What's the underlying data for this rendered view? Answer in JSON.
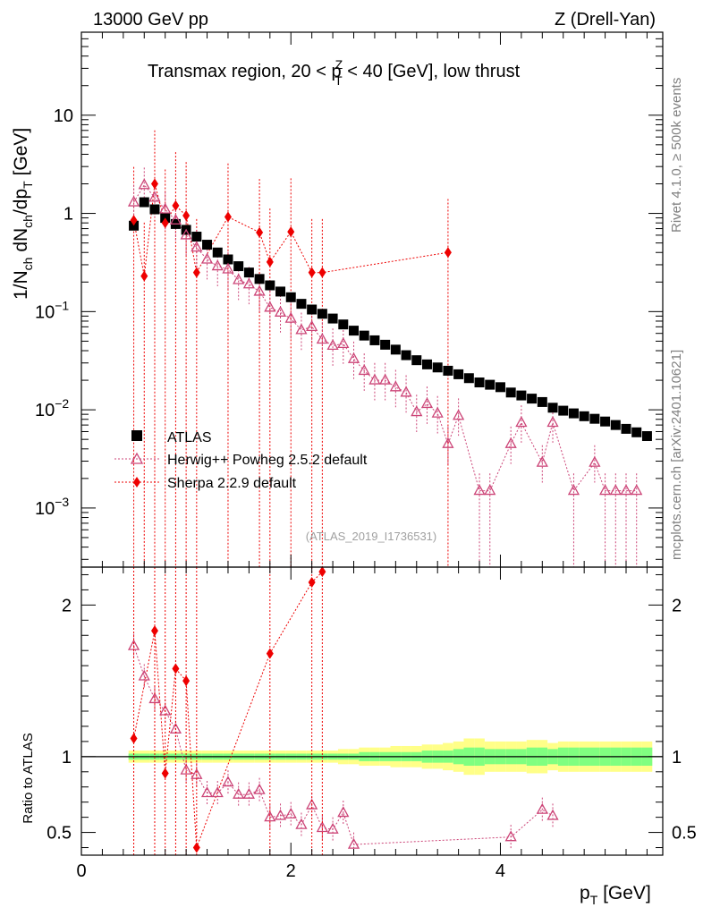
{
  "header": {
    "left": "13000 GeV pp",
    "right": "Z (Drell-Yan)",
    "plot_title": "Transmax region, 20 < p",
    "plot_title_sup": "Z",
    "plot_title_sub": "T",
    "plot_title_tail": " < 40 [GeV], low thrust"
  },
  "side_labels": {
    "rivet": "Rivet 4.1.0, ≥ 500k events",
    "mcplots": "mcplots.cern.ch [arXiv:2401.10621]"
  },
  "watermark": "(ATLAS_2019_I1736531)",
  "colors": {
    "atlas": "#000000",
    "herwig": "#cc4477",
    "sherpa": "#ee0000",
    "band_inner": "#80ff80",
    "band_outer": "#ffff88"
  },
  "chart_data": [
    {
      "type": "scatter",
      "title": "Transmax region, 20 < pT^Z < 40 [GeV], low thrust",
      "ylabel": "1/N_ch dN_ch/dp_T [GeV]",
      "yscale": "log",
      "ylim": [
        0.00025,
        70
      ],
      "xlim": [
        0,
        5.55
      ],
      "y_ticks": [
        {
          "value": 0.001,
          "base": "10",
          "exp": "−3"
        },
        {
          "value": 0.01,
          "base": "10",
          "exp": "−2"
        },
        {
          "value": 0.1,
          "base": "10",
          "exp": "−1"
        },
        {
          "value": 1,
          "base": "1",
          "exp": ""
        },
        {
          "value": 10,
          "base": "10",
          "exp": ""
        }
      ],
      "legend": [
        "ATLAS",
        "Herwig++ Powheg 2.5.2 default",
        "Sherpa 2.2.9 default"
      ],
      "series": [
        {
          "name": "ATLAS",
          "marker": "square",
          "x": [
            0.5,
            0.6,
            0.7,
            0.8,
            0.9,
            1.0,
            1.1,
            1.2,
            1.3,
            1.4,
            1.5,
            1.6,
            1.7,
            1.8,
            1.9,
            2.0,
            2.1,
            2.2,
            2.3,
            2.4,
            2.5,
            2.6,
            2.7,
            2.8,
            2.9,
            3.0,
            3.1,
            3.2,
            3.3,
            3.4,
            3.5,
            3.6,
            3.7,
            3.8,
            3.9,
            4.0,
            4.1,
            4.2,
            4.3,
            4.4,
            4.5,
            4.6,
            4.7,
            4.8,
            4.9,
            5.0,
            5.1,
            5.2,
            5.3,
            5.4
          ],
          "y": [
            0.75,
            1.3,
            1.1,
            0.9,
            0.78,
            0.68,
            0.58,
            0.48,
            0.4,
            0.34,
            0.29,
            0.25,
            0.215,
            0.185,
            0.16,
            0.14,
            0.12,
            0.105,
            0.095,
            0.085,
            0.074,
            0.064,
            0.057,
            0.051,
            0.046,
            0.041,
            0.036,
            0.032,
            0.029,
            0.027,
            0.025,
            0.023,
            0.021,
            0.019,
            0.018,
            0.017,
            0.015,
            0.014,
            0.013,
            0.012,
            0.0105,
            0.0098,
            0.0092,
            0.0086,
            0.0081,
            0.0076,
            0.007,
            0.0064,
            0.0059,
            0.0054
          ]
        },
        {
          "name": "Herwig++ Powheg 2.5.2 default",
          "marker": "open-triangle",
          "x": [
            0.5,
            0.6,
            0.7,
            0.8,
            0.9,
            1.0,
            1.1,
            1.2,
            1.3,
            1.4,
            1.5,
            1.6,
            1.7,
            1.8,
            1.9,
            2.0,
            2.1,
            2.2,
            2.3,
            2.4,
            2.5,
            2.6,
            2.7,
            2.8,
            2.9,
            3.0,
            3.1,
            3.2,
            3.3,
            3.4,
            3.5,
            3.6,
            3.8,
            3.9,
            4.1,
            4.2,
            4.4,
            4.5,
            4.7,
            4.9,
            5.0,
            5.1,
            5.2,
            5.3
          ],
          "y": [
            1.3,
            1.95,
            1.45,
            1.1,
            0.85,
            0.6,
            0.45,
            0.34,
            0.29,
            0.27,
            0.21,
            0.19,
            0.16,
            0.11,
            0.098,
            0.085,
            0.065,
            0.07,
            0.052,
            0.045,
            0.047,
            0.033,
            0.025,
            0.02,
            0.02,
            0.017,
            0.015,
            0.0095,
            0.0115,
            0.0092,
            0.0045,
            0.0087,
            0.0015,
            0.0015,
            0.0045,
            0.0074,
            0.0029,
            0.0074,
            0.0015,
            0.0029,
            0.0015,
            0.0015,
            0.0015,
            0.0015
          ]
        },
        {
          "name": "Sherpa 2.2.9 default",
          "marker": "diamond",
          "x": [
            0.5,
            0.6,
            0.7,
            0.8,
            0.9,
            1.0,
            1.1,
            1.4,
            1.7,
            1.8,
            2.0,
            2.2,
            2.3,
            3.5
          ],
          "y": [
            0.85,
            0.23,
            2.0,
            0.8,
            1.2,
            0.95,
            0.25,
            0.92,
            0.64,
            0.32,
            0.65,
            0.25,
            0.25,
            0.4
          ]
        }
      ]
    },
    {
      "type": "scatter",
      "ylabel": "Ratio to ATLAS",
      "xlabel": "p_T [GeV]",
      "ylim": [
        0.35,
        2.25
      ],
      "xlim": [
        0,
        5.55
      ],
      "x_ticks": [
        "0",
        "2",
        "4"
      ],
      "y_ticks": [
        "0.5",
        "1",
        "2"
      ],
      "series": [
        {
          "name": "Herwig++ Powheg 2.5.2 default",
          "x": [
            0.5,
            0.6,
            0.7,
            0.8,
            0.9,
            1.0,
            1.1,
            1.2,
            1.3,
            1.4,
            1.5,
            1.6,
            1.7,
            1.8,
            1.9,
            2.0,
            2.1,
            2.2,
            2.3,
            2.4,
            2.5,
            2.6,
            4.1,
            4.4,
            4.5
          ],
          "y": [
            1.73,
            1.53,
            1.38,
            1.3,
            1.18,
            0.91,
            0.88,
            0.76,
            0.76,
            0.83,
            0.75,
            0.75,
            0.78,
            0.6,
            0.61,
            0.62,
            0.55,
            0.68,
            0.53,
            0.52,
            0.63,
            0.42,
            0.47,
            0.65,
            0.61
          ]
        },
        {
          "name": "Sherpa 2.2.9 default",
          "x": [
            0.5,
            0.7,
            0.8,
            0.9,
            1.0,
            1.1,
            1.8,
            2.2,
            2.3
          ],
          "y": [
            1.12,
            1.83,
            0.89,
            1.58,
            1.5,
            0.4,
            1.68,
            2.15,
            2.22
          ]
        },
        {
          "name": "ATLAS uncertainty band",
          "x_edges": [
            0.45,
            0.55,
            0.65,
            0.75,
            0.85,
            0.95,
            1.05,
            1.15,
            1.25,
            1.35,
            1.45,
            1.55,
            1.65,
            1.75,
            1.85,
            1.95,
            2.05,
            2.15,
            2.25,
            2.35,
            2.45,
            2.55,
            2.65,
            2.75,
            2.85,
            2.95,
            3.05,
            3.15,
            3.25,
            3.35,
            3.45,
            3.55,
            3.65,
            3.75,
            3.85,
            3.95,
            4.05,
            4.15,
            4.25,
            4.35,
            4.45,
            4.55,
            4.65,
            4.75,
            4.85,
            4.95,
            5.05,
            5.15,
            5.25,
            5.35,
            5.45
          ],
          "inner": [
            0.02,
            0.02,
            0.02,
            0.02,
            0.02,
            0.02,
            0.02,
            0.02,
            0.02,
            0.02,
            0.02,
            0.02,
            0.02,
            0.02,
            0.02,
            0.02,
            0.02,
            0.02,
            0.02,
            0.02,
            0.02,
            0.02,
            0.03,
            0.03,
            0.03,
            0.03,
            0.03,
            0.03,
            0.04,
            0.04,
            0.04,
            0.05,
            0.06,
            0.06,
            0.05,
            0.05,
            0.05,
            0.05,
            0.06,
            0.06,
            0.05,
            0.06,
            0.06,
            0.06,
            0.06,
            0.06,
            0.06,
            0.06,
            0.06,
            0.06
          ],
          "outer": [
            0.04,
            0.04,
            0.04,
            0.04,
            0.04,
            0.04,
            0.04,
            0.04,
            0.04,
            0.04,
            0.04,
            0.04,
            0.04,
            0.04,
            0.04,
            0.04,
            0.04,
            0.04,
            0.04,
            0.04,
            0.05,
            0.05,
            0.06,
            0.06,
            0.06,
            0.07,
            0.07,
            0.07,
            0.08,
            0.08,
            0.09,
            0.1,
            0.12,
            0.12,
            0.1,
            0.1,
            0.1,
            0.1,
            0.11,
            0.11,
            0.09,
            0.1,
            0.1,
            0.1,
            0.1,
            0.1,
            0.1,
            0.1,
            0.1,
            0.1
          ]
        }
      ]
    }
  ]
}
